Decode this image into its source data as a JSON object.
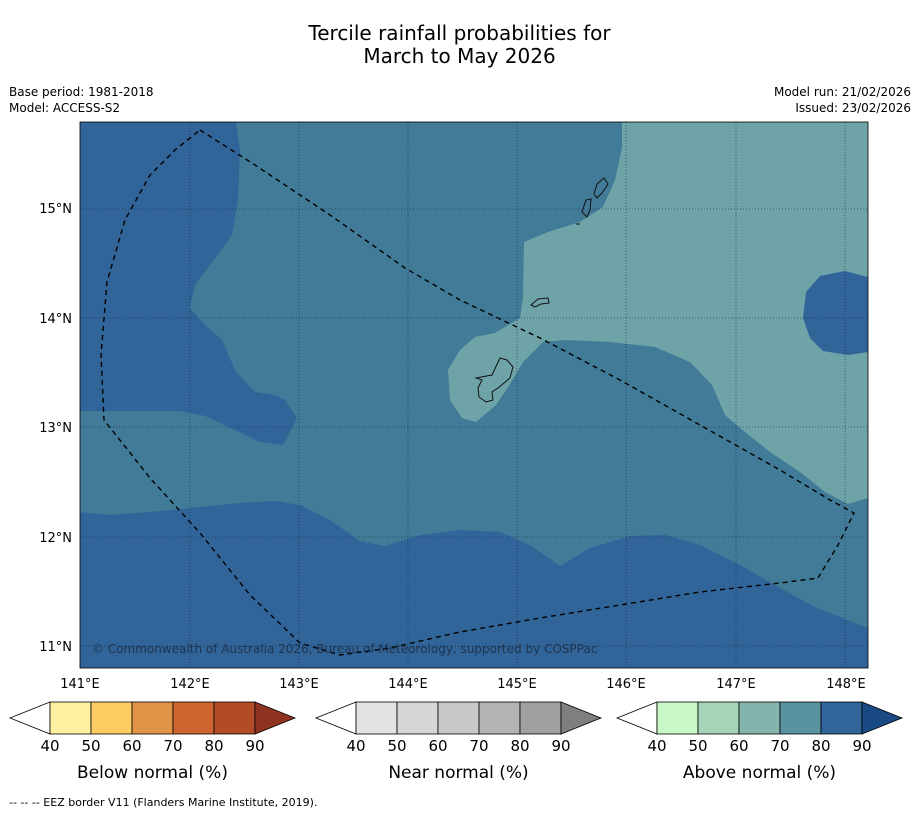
{
  "title_line1": "Tercile rainfall probabilities for",
  "title_line2": "March to May 2026",
  "base_period": "Base period: 1981-2018",
  "model": "Model: ACCESS-S2",
  "model_run": "Model run: 21/02/2026",
  "issued": "Issued: 23/02/2026",
  "map": {
    "lat_labels": [
      "15°N",
      "14°N",
      "13°N",
      "12°N",
      "11°N"
    ],
    "lon_labels": [
      "141°E",
      "142°E",
      "143°E",
      "144°E",
      "145°E",
      "146°E",
      "147°E",
      "148°E"
    ],
    "copyright": "© Commonwealth of Australia 2026, Bureau of Meteorology, supported by COSPPac",
    "colors": {
      "above_80_90": "#31659a",
      "above_70_80": "#427b98",
      "above_60_70": "#6ea4a8",
      "eez_border": "#000000"
    }
  },
  "legends": [
    {
      "title": "Below normal (%)",
      "ticks": [
        "40",
        "50",
        "60",
        "70",
        "80",
        "90"
      ],
      "colors": [
        "#ffffff",
        "#fff0a1",
        "#fdcc63",
        "#e19446",
        "#cc6530",
        "#b24c27",
        "#8e3221"
      ]
    },
    {
      "title": "Near normal (%)",
      "ticks": [
        "40",
        "50",
        "60",
        "70",
        "80",
        "90"
      ],
      "colors": [
        "#ffffff",
        "#e3e3e3",
        "#d6d6d6",
        "#c8c8c8",
        "#b4b4b4",
        "#a0a0a0",
        "#7f7f7f"
      ]
    },
    {
      "title": "Above normal (%)",
      "ticks": [
        "40",
        "50",
        "60",
        "70",
        "80",
        "90"
      ],
      "colors": [
        "#ffffff",
        "#c8f8c8",
        "#a5d4b9",
        "#84b5ac",
        "#5a93a0",
        "#31659a",
        "#1a4a84"
      ]
    }
  ],
  "footer": "--  --  -- EEZ border V11 (Flanders Marine Institute, 2019)."
}
